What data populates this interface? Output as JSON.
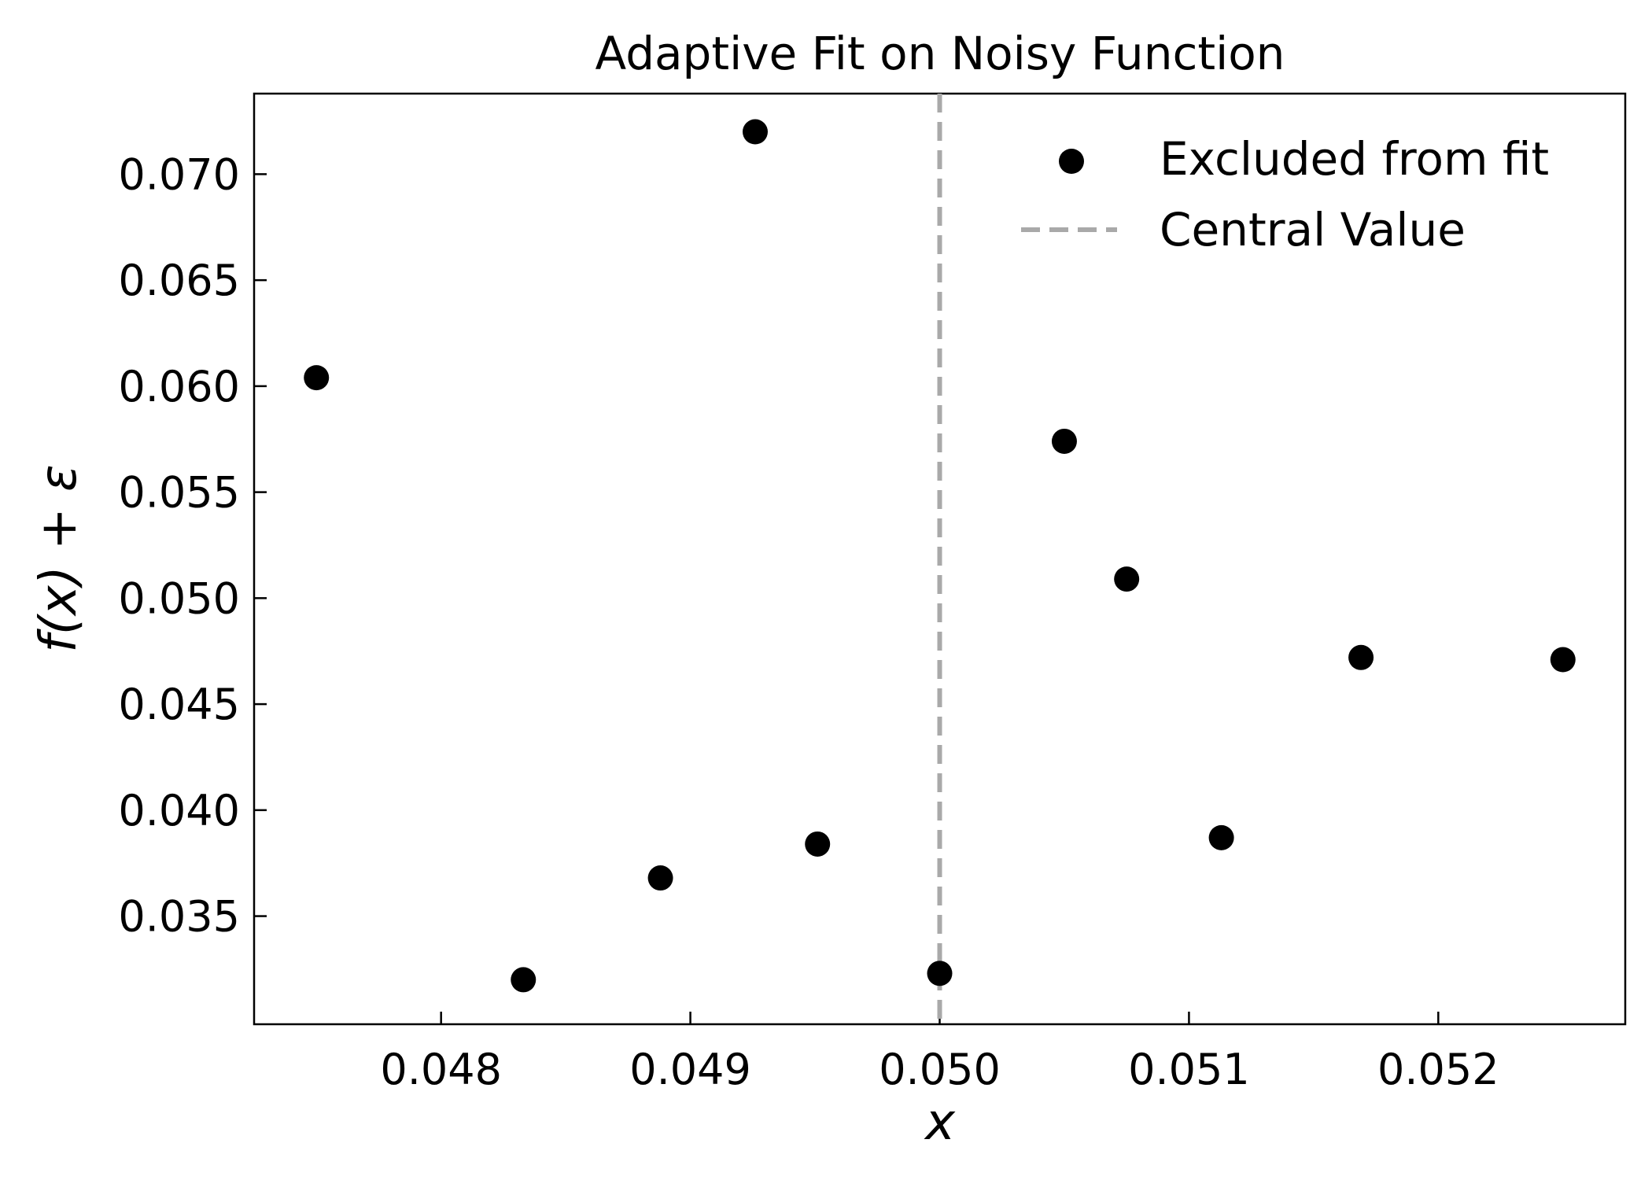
{
  "chart_data": {
    "type": "scatter",
    "title": "Adaptive Fit on Noisy Function",
    "xlabel": "x",
    "ylabel": "f(x) + ε",
    "xlim": [
      0.04725,
      0.05275
    ],
    "ylim": [
      0.0299,
      0.0738
    ],
    "x_ticks": [
      0.048,
      0.049,
      0.05,
      0.051,
      0.052
    ],
    "x_tick_labels": [
      "0.048",
      "0.049",
      "0.050",
      "0.051",
      "0.052"
    ],
    "y_ticks": [
      0.035,
      0.04,
      0.045,
      0.05,
      0.055,
      0.06,
      0.065,
      0.07
    ],
    "y_tick_labels": [
      "0.035",
      "0.040",
      "0.045",
      "0.050",
      "0.055",
      "0.060",
      "0.065",
      "0.070"
    ],
    "grid": false,
    "legend_position": "top-right",
    "series": [
      {
        "name": "Excluded from fit",
        "kind": "scatter",
        "color": "#000000",
        "points": [
          {
            "x": 0.0475,
            "y": 0.0604
          },
          {
            "x": 0.04833,
            "y": 0.032
          },
          {
            "x": 0.04888,
            "y": 0.0368
          },
          {
            "x": 0.04926,
            "y": 0.072
          },
          {
            "x": 0.04951,
            "y": 0.0384
          },
          {
            "x": 0.05,
            "y": 0.0323
          },
          {
            "x": 0.0505,
            "y": 0.0574
          },
          {
            "x": 0.05075,
            "y": 0.0509
          },
          {
            "x": 0.05113,
            "y": 0.0387
          },
          {
            "x": 0.05169,
            "y": 0.0472
          },
          {
            "x": 0.0525,
            "y": 0.0471
          }
        ]
      }
    ],
    "vertical_lines": [
      {
        "name": "Central Value",
        "x": 0.05,
        "style": "dashed",
        "color": "#a9a9a9"
      }
    ]
  }
}
